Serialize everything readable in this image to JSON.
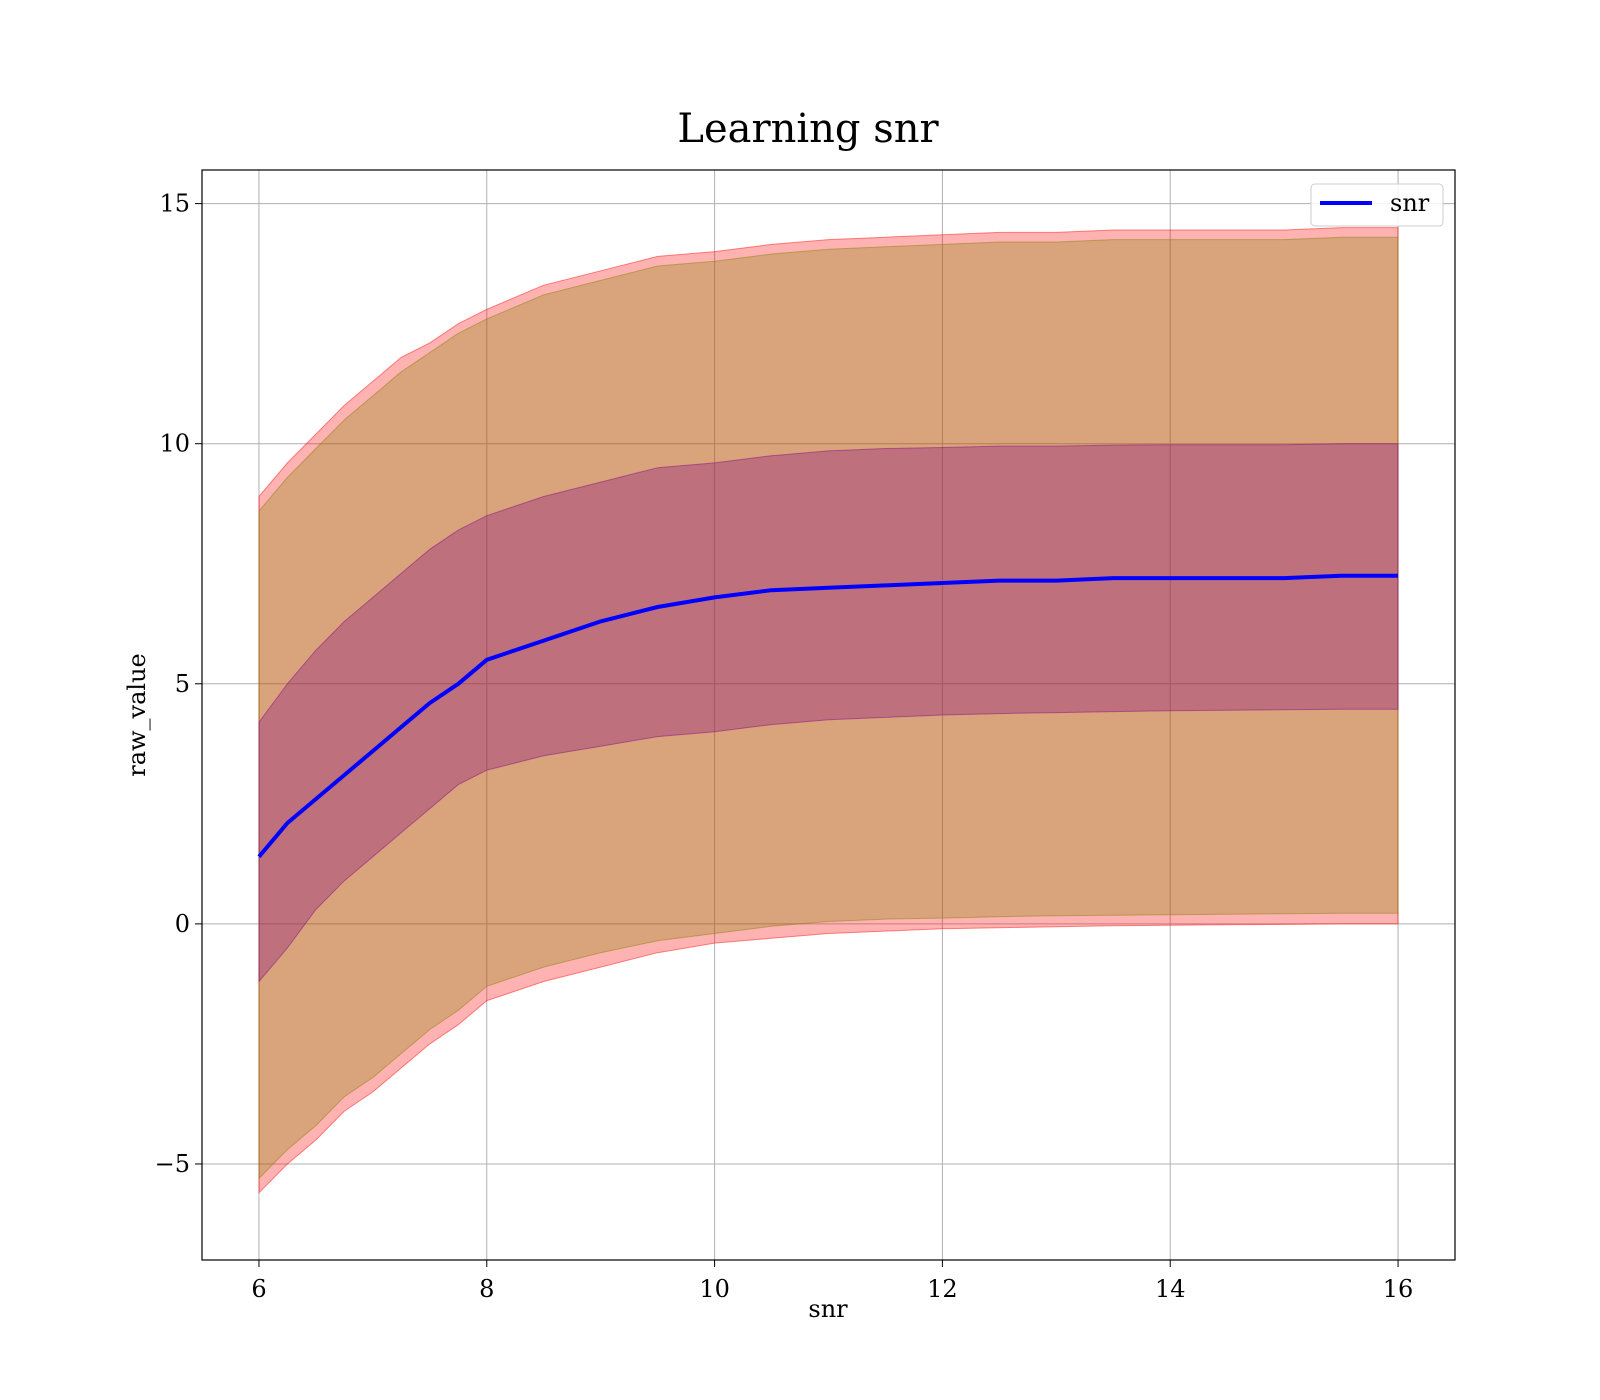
{
  "chart_data": {
    "type": "area",
    "title": "Learning snr",
    "xlabel": "snr",
    "ylabel": "raw_value",
    "xlim": [
      5.5,
      16.5
    ],
    "ylim": [
      -7,
      15.7
    ],
    "xticks": [
      {
        "value": 6,
        "label": "6"
      },
      {
        "value": 8,
        "label": "8"
      },
      {
        "value": 10,
        "label": "10"
      },
      {
        "value": 12,
        "label": "12"
      },
      {
        "value": 14,
        "label": "14"
      },
      {
        "value": 16,
        "label": "16"
      }
    ],
    "yticks": [
      {
        "value": -5,
        "label": "−5"
      },
      {
        "value": 0,
        "label": "0"
      },
      {
        "value": 5,
        "label": "5"
      },
      {
        "value": 10,
        "label": "10"
      },
      {
        "value": 15,
        "label": "15"
      }
    ],
    "grid": true,
    "legend": {
      "position": "top-right",
      "entries": [
        "snr"
      ]
    },
    "x": [
      6.0,
      6.25,
      6.5,
      6.75,
      7.0,
      7.25,
      7.5,
      7.75,
      8.0,
      8.5,
      9.0,
      9.5,
      10.0,
      10.5,
      11.0,
      11.5,
      12.0,
      12.5,
      13.0,
      13.5,
      14.0,
      14.5,
      15.0,
      15.5,
      16.0
    ],
    "series": [
      {
        "name": "snr",
        "color": "#0000ff",
        "values": [
          1.4,
          2.1,
          2.6,
          3.1,
          3.6,
          4.1,
          4.6,
          5.0,
          5.5,
          5.9,
          6.3,
          6.6,
          6.8,
          6.95,
          7.0,
          7.05,
          7.1,
          7.15,
          7.15,
          7.2,
          7.2,
          7.2,
          7.2,
          7.25,
          7.25
        ]
      }
    ],
    "bands": [
      {
        "role": "outer",
        "color": "#ff0000",
        "upper": [
          8.9,
          9.6,
          10.2,
          10.8,
          11.3,
          11.8,
          12.1,
          12.5,
          12.8,
          13.3,
          13.6,
          13.9,
          14.0,
          14.15,
          14.25,
          14.3,
          14.35,
          14.4,
          14.4,
          14.45,
          14.45,
          14.45,
          14.45,
          14.5,
          14.5
        ],
        "lower": [
          -5.6,
          -5.0,
          -4.5,
          -3.9,
          -3.5,
          -3.0,
          -2.5,
          -2.1,
          -1.6,
          -1.2,
          -0.9,
          -0.6,
          -0.4,
          -0.3,
          -0.2,
          -0.15,
          -0.1,
          -0.08,
          -0.06,
          -0.04,
          -0.03,
          -0.02,
          -0.01,
          0.0,
          0.0
        ]
      },
      {
        "role": "outer-inner",
        "color": "#808000",
        "upper": [
          8.6,
          9.3,
          9.9,
          10.5,
          11.0,
          11.5,
          11.9,
          12.3,
          12.6,
          13.1,
          13.4,
          13.7,
          13.8,
          13.95,
          14.05,
          14.1,
          14.15,
          14.2,
          14.2,
          14.25,
          14.25,
          14.25,
          14.25,
          14.3,
          14.3
        ],
        "lower": [
          -5.3,
          -4.7,
          -4.2,
          -3.6,
          -3.2,
          -2.7,
          -2.2,
          -1.8,
          -1.3,
          -0.9,
          -0.6,
          -0.35,
          -0.2,
          -0.05,
          0.05,
          0.1,
          0.12,
          0.15,
          0.17,
          0.18,
          0.19,
          0.2,
          0.21,
          0.22,
          0.22
        ]
      },
      {
        "role": "inner",
        "color": "#800080",
        "upper": [
          4.2,
          5.0,
          5.7,
          6.3,
          6.8,
          7.3,
          7.8,
          8.2,
          8.5,
          8.9,
          9.2,
          9.5,
          9.6,
          9.75,
          9.85,
          9.9,
          9.92,
          9.95,
          9.95,
          9.97,
          9.98,
          9.98,
          9.98,
          10.0,
          10.0
        ],
        "lower": [
          -1.2,
          -0.5,
          0.3,
          0.9,
          1.4,
          1.9,
          2.4,
          2.9,
          3.2,
          3.5,
          3.7,
          3.9,
          4.0,
          4.15,
          4.25,
          4.3,
          4.35,
          4.38,
          4.4,
          4.42,
          4.44,
          4.45,
          4.46,
          4.47,
          4.47
        ]
      }
    ]
  }
}
